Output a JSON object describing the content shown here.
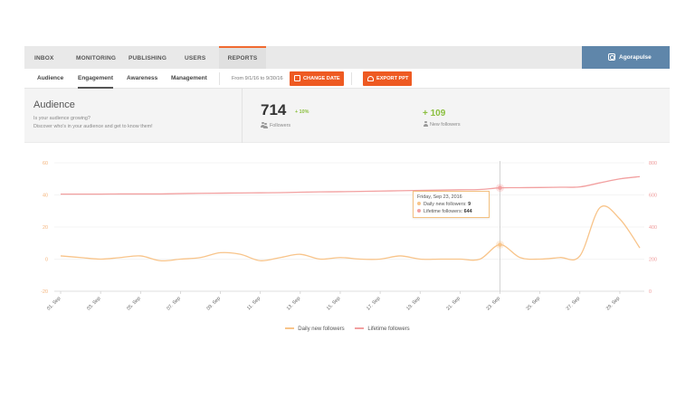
{
  "topnav": {
    "tabs": [
      {
        "label": "INBOX",
        "active": false
      },
      {
        "label": "MONITORING",
        "active": false
      },
      {
        "label": "PUBLISHING",
        "active": false
      },
      {
        "label": "USERS",
        "active": false
      },
      {
        "label": "REPORTS",
        "active": true
      }
    ],
    "brand": "Agorapulse"
  },
  "subnav": {
    "tabs": [
      {
        "label": "Audience",
        "active": false
      },
      {
        "label": "Engagement",
        "active": true
      },
      {
        "label": "Awareness",
        "active": false
      },
      {
        "label": "Management",
        "active": false
      }
    ],
    "date_range": "From 9/1/16 to 9/30/16",
    "change_date_label": "CHANGE DATE",
    "export_label": "EXPORT PPT"
  },
  "summary": {
    "title": "Audience",
    "subtitle_line1": "Is your audience growing?",
    "subtitle_line2": "Discover who's in your audience and get to know them!",
    "followers_value": "714",
    "followers_change": "+ 10%",
    "followers_label": "Followers",
    "new_followers_value": "+ 109",
    "new_followers_label": "New followers"
  },
  "tooltip": {
    "date": "Friday, Sep 23, 2016",
    "daily_label": "Daily new followers:",
    "daily_value": "9",
    "lifetime_label": "Lifetime followers:",
    "lifetime_value": "644"
  },
  "colors": {
    "accent": "#ee5a22",
    "brand": "#5f86aa",
    "daily_series": "#f8c48a",
    "lifetime_series": "#f2a0a0",
    "positive": "#8bbf3f"
  },
  "chart_data": {
    "type": "line",
    "x_ticks": [
      "01. Sep",
      "03. Sep",
      "05. Sep",
      "07. Sep",
      "09. Sep",
      "11. Sep",
      "13. Sep",
      "15. Sep",
      "17. Sep",
      "19. Sep",
      "21. Sep",
      "23. Sep",
      "25. Sep",
      "27. Sep",
      "29. Sep"
    ],
    "x_days": [
      1,
      2,
      3,
      4,
      5,
      6,
      7,
      8,
      9,
      10,
      11,
      12,
      13,
      14,
      15,
      16,
      17,
      18,
      19,
      20,
      21,
      22,
      23,
      24,
      25,
      26,
      27,
      28,
      29,
      30
    ],
    "left_axis": {
      "ticks": [
        -20,
        0,
        20,
        40,
        60
      ],
      "range": [
        -20,
        60
      ]
    },
    "right_axis": {
      "ticks": [
        0,
        200,
        400,
        600,
        800
      ],
      "range": [
        0,
        800
      ]
    },
    "series": [
      {
        "name": "Daily new followers",
        "axis": "left",
        "values": [
          2,
          1,
          0,
          1,
          2,
          -1,
          0,
          1,
          4,
          3,
          -1,
          1,
          3,
          0,
          1,
          0,
          0,
          2,
          0,
          0,
          0,
          0,
          9,
          1,
          0,
          1,
          2,
          32,
          25,
          7
        ]
      },
      {
        "name": "Lifetime followers",
        "axis": "right",
        "values": [
          605,
          605,
          605,
          606,
          606,
          606,
          608,
          610,
          611,
          612,
          613,
          614,
          617,
          619,
          620,
          622,
          624,
          626,
          628,
          630,
          632,
          634,
          644,
          645,
          646,
          648,
          650,
          675,
          700,
          714
        ]
      }
    ],
    "highlight_day": 23
  },
  "legend": {
    "items": [
      "Daily new followers",
      "Lifetime followers"
    ]
  }
}
